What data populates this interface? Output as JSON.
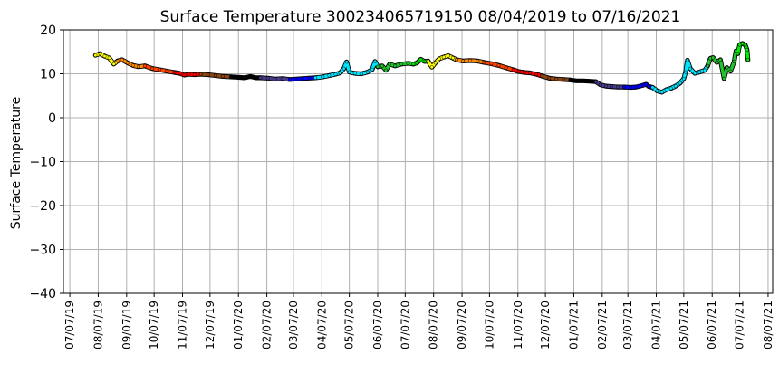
{
  "chart_data": {
    "type": "scatter",
    "title": "Surface Temperature 300234065719150  08/04/2019 to 07/16/2021",
    "xlabel": "",
    "ylabel": "Surface Temperature",
    "ylim": [
      -40,
      20
    ],
    "yticks": [
      20,
      10,
      0,
      -10,
      -20,
      -30,
      -40
    ],
    "xlim": [
      "2019-06-30",
      "2021-08-12"
    ],
    "xticks": [
      {
        "date": "2019-07-07",
        "label": "07/07/19"
      },
      {
        "date": "2019-08-07",
        "label": "08/07/19"
      },
      {
        "date": "2019-09-07",
        "label": "09/07/19"
      },
      {
        "date": "2019-10-07",
        "label": "10/07/19"
      },
      {
        "date": "2019-11-07",
        "label": "11/07/19"
      },
      {
        "date": "2019-12-07",
        "label": "12/07/19"
      },
      {
        "date": "2020-01-07",
        "label": "01/07/20"
      },
      {
        "date": "2020-02-07",
        "label": "02/07/20"
      },
      {
        "date": "2020-03-07",
        "label": "03/07/20"
      },
      {
        "date": "2020-04-07",
        "label": "04/07/20"
      },
      {
        "date": "2020-05-07",
        "label": "05/07/20"
      },
      {
        "date": "2020-06-07",
        "label": "06/07/20"
      },
      {
        "date": "2020-07-07",
        "label": "07/07/20"
      },
      {
        "date": "2020-08-07",
        "label": "08/07/20"
      },
      {
        "date": "2020-09-07",
        "label": "09/07/20"
      },
      {
        "date": "2020-10-07",
        "label": "10/07/20"
      },
      {
        "date": "2020-11-07",
        "label": "11/07/20"
      },
      {
        "date": "2020-12-07",
        "label": "12/07/20"
      },
      {
        "date": "2021-01-07",
        "label": "01/07/21"
      },
      {
        "date": "2021-02-07",
        "label": "02/07/21"
      },
      {
        "date": "2021-03-07",
        "label": "03/07/21"
      },
      {
        "date": "2021-04-07",
        "label": "04/07/21"
      },
      {
        "date": "2021-05-07",
        "label": "05/07/21"
      },
      {
        "date": "2021-06-07",
        "label": "06/07/21"
      },
      {
        "date": "2021-07-07",
        "label": "07/07/21"
      },
      {
        "date": "2021-08-07",
        "label": "08/07/21"
      }
    ],
    "grid": true,
    "series": [
      {
        "color": "#ffff00",
        "points": [
          [
            "2019-08-04",
            14.2
          ],
          [
            "2019-08-09",
            14.6
          ],
          [
            "2019-08-14",
            14.0
          ],
          [
            "2019-08-19",
            13.6
          ],
          [
            "2019-08-24",
            12.2
          ],
          [
            "2019-08-28",
            12.9
          ]
        ]
      },
      {
        "color": "#ff8c00",
        "points": [
          [
            "2019-08-28",
            12.9
          ],
          [
            "2019-09-02",
            13.2
          ],
          [
            "2019-09-08",
            12.5
          ],
          [
            "2019-09-14",
            11.9
          ],
          [
            "2019-09-20",
            11.6
          ],
          [
            "2019-09-27",
            11.8
          ]
        ]
      },
      {
        "color": "#ff4500",
        "points": [
          [
            "2019-09-27",
            11.8
          ],
          [
            "2019-10-05",
            11.2
          ],
          [
            "2019-10-13",
            10.9
          ],
          [
            "2019-10-21",
            10.6
          ],
          [
            "2019-10-29",
            10.3
          ]
        ]
      },
      {
        "color": "#ff0000",
        "points": [
          [
            "2019-10-29",
            10.3
          ],
          [
            "2019-11-04",
            10.1
          ],
          [
            "2019-11-09",
            9.7
          ],
          [
            "2019-11-14",
            9.9
          ],
          [
            "2019-11-20",
            9.8
          ],
          [
            "2019-11-27",
            9.9
          ]
        ]
      },
      {
        "color": "#8b4513",
        "points": [
          [
            "2019-11-27",
            9.9
          ],
          [
            "2019-12-05",
            9.8
          ],
          [
            "2019-12-13",
            9.6
          ],
          [
            "2019-12-21",
            9.4
          ],
          [
            "2019-12-30",
            9.3
          ]
        ]
      },
      {
        "color": "#000000",
        "points": [
          [
            "2019-12-30",
            9.3
          ],
          [
            "2020-01-07",
            9.2
          ],
          [
            "2020-01-14",
            9.1
          ],
          [
            "2020-01-20",
            9.4
          ],
          [
            "2020-01-26",
            9.1
          ],
          [
            "2020-01-31",
            9.1
          ]
        ]
      },
      {
        "color": "#483d8b",
        "points": [
          [
            "2020-01-31",
            9.1
          ],
          [
            "2020-02-08",
            9.0
          ],
          [
            "2020-02-16",
            8.8
          ],
          [
            "2020-02-24",
            8.9
          ],
          [
            "2020-03-03",
            8.7
          ]
        ]
      },
      {
        "color": "#0000ff",
        "points": [
          [
            "2020-03-03",
            8.7
          ],
          [
            "2020-03-10",
            8.8
          ],
          [
            "2020-03-17",
            8.9
          ],
          [
            "2020-03-24",
            9.0
          ],
          [
            "2020-03-31",
            9.1
          ]
        ]
      },
      {
        "color": "#00e5ff",
        "points": [
          [
            "2020-03-31",
            9.1
          ],
          [
            "2020-04-08",
            9.3
          ],
          [
            "2020-04-15",
            9.6
          ],
          [
            "2020-04-22",
            9.9
          ],
          [
            "2020-04-27",
            10.2
          ],
          [
            "2020-05-01",
            11.2
          ],
          [
            "2020-05-04",
            12.7
          ],
          [
            "2020-05-07",
            10.4
          ],
          [
            "2020-05-13",
            10.1
          ],
          [
            "2020-05-20",
            10.0
          ],
          [
            "2020-05-27",
            10.4
          ],
          [
            "2020-06-01",
            11.0
          ],
          [
            "2020-06-04",
            12.8
          ],
          [
            "2020-06-07",
            11.6
          ]
        ]
      },
      {
        "color": "#22c32e",
        "points": [
          [
            "2020-06-07",
            11.6
          ],
          [
            "2020-06-12",
            11.8
          ],
          [
            "2020-06-16",
            10.8
          ],
          [
            "2020-06-20",
            12.2
          ],
          [
            "2020-06-26",
            11.8
          ],
          [
            "2020-07-03",
            12.2
          ],
          [
            "2020-07-10",
            12.4
          ],
          [
            "2020-07-16",
            12.2
          ]
        ]
      },
      {
        "color": "#00ee00",
        "points": [
          [
            "2020-07-16",
            12.2
          ],
          [
            "2020-07-20",
            12.5
          ],
          [
            "2020-07-24",
            13.3
          ],
          [
            "2020-07-28",
            12.8
          ],
          [
            "2020-08-01",
            12.9
          ]
        ]
      },
      {
        "color": "#ffff00",
        "points": [
          [
            "2020-08-01",
            12.9
          ],
          [
            "2020-08-05",
            11.5
          ],
          [
            "2020-08-09",
            12.5
          ],
          [
            "2020-08-13",
            13.4
          ],
          [
            "2020-08-18",
            13.8
          ],
          [
            "2020-08-23",
            14.1
          ],
          [
            "2020-08-28",
            13.6
          ],
          [
            "2020-09-01",
            13.2
          ]
        ]
      },
      {
        "color": "#ff8c00",
        "points": [
          [
            "2020-09-01",
            13.2
          ],
          [
            "2020-09-08",
            12.9
          ],
          [
            "2020-09-16",
            13.0
          ],
          [
            "2020-09-24",
            12.9
          ],
          [
            "2020-10-01",
            12.6
          ]
        ]
      },
      {
        "color": "#ff4500",
        "points": [
          [
            "2020-10-01",
            12.6
          ],
          [
            "2020-10-09",
            12.3
          ],
          [
            "2020-10-17",
            11.9
          ],
          [
            "2020-10-25",
            11.4
          ],
          [
            "2020-11-02",
            10.9
          ]
        ]
      },
      {
        "color": "#ff0000",
        "points": [
          [
            "2020-11-02",
            10.9
          ],
          [
            "2020-11-08",
            10.5
          ],
          [
            "2020-11-14",
            10.3
          ],
          [
            "2020-11-20",
            10.2
          ],
          [
            "2020-11-27",
            9.9
          ],
          [
            "2020-12-03",
            9.5
          ]
        ]
      },
      {
        "color": "#8b4513",
        "points": [
          [
            "2020-12-03",
            9.5
          ],
          [
            "2020-12-11",
            9.0
          ],
          [
            "2020-12-19",
            8.8
          ],
          [
            "2020-12-27",
            8.7
          ],
          [
            "2021-01-03",
            8.6
          ]
        ]
      },
      {
        "color": "#000000",
        "points": [
          [
            "2021-01-03",
            8.6
          ],
          [
            "2021-01-10",
            8.4
          ],
          [
            "2021-01-17",
            8.4
          ],
          [
            "2021-01-24",
            8.3
          ],
          [
            "2021-01-31",
            8.2
          ]
        ]
      },
      {
        "color": "#483d8b",
        "points": [
          [
            "2021-01-31",
            8.2
          ],
          [
            "2021-02-05",
            7.5
          ],
          [
            "2021-02-11",
            7.2
          ],
          [
            "2021-02-17",
            7.1
          ],
          [
            "2021-02-24",
            7.0
          ],
          [
            "2021-03-03",
            7.0
          ]
        ]
      },
      {
        "color": "#0000ff",
        "points": [
          [
            "2021-03-03",
            7.0
          ],
          [
            "2021-03-10",
            6.9
          ],
          [
            "2021-03-16",
            7.0
          ],
          [
            "2021-03-22",
            7.3
          ],
          [
            "2021-03-27",
            7.6
          ],
          [
            "2021-03-30",
            7.1
          ],
          [
            "2021-04-03",
            6.9
          ]
        ]
      },
      {
        "color": "#00e5ff",
        "points": [
          [
            "2021-04-03",
            6.9
          ],
          [
            "2021-04-08",
            6.1
          ],
          [
            "2021-04-13",
            5.8
          ],
          [
            "2021-04-18",
            6.4
          ],
          [
            "2021-04-23",
            6.7
          ],
          [
            "2021-04-28",
            7.2
          ],
          [
            "2021-05-03",
            7.9
          ],
          [
            "2021-05-07",
            8.9
          ],
          [
            "2021-05-09",
            10.4
          ],
          [
            "2021-05-11",
            13.1
          ],
          [
            "2021-05-14",
            11.2
          ],
          [
            "2021-05-19",
            10.1
          ],
          [
            "2021-05-24",
            10.4
          ],
          [
            "2021-05-30",
            10.8
          ],
          [
            "2021-06-02",
            11.8
          ]
        ]
      },
      {
        "color": "#22c32e",
        "points": [
          [
            "2021-06-02",
            11.8
          ],
          [
            "2021-06-05",
            13.5
          ],
          [
            "2021-06-08",
            13.7
          ],
          [
            "2021-06-12",
            12.6
          ],
          [
            "2021-06-16",
            13.2
          ],
          [
            "2021-06-20",
            8.9
          ],
          [
            "2021-06-23",
            11.4
          ],
          [
            "2021-06-27",
            10.6
          ],
          [
            "2021-07-01",
            12.8
          ],
          [
            "2021-07-03",
            15.2
          ],
          [
            "2021-07-05",
            14.6
          ]
        ]
      },
      {
        "color": "#00ee00",
        "points": [
          [
            "2021-07-05",
            14.6
          ],
          [
            "2021-07-07",
            16.6
          ],
          [
            "2021-07-10",
            16.9
          ],
          [
            "2021-07-13",
            16.6
          ],
          [
            "2021-07-15",
            15.5
          ],
          [
            "2021-07-16",
            13.2
          ]
        ]
      }
    ]
  }
}
